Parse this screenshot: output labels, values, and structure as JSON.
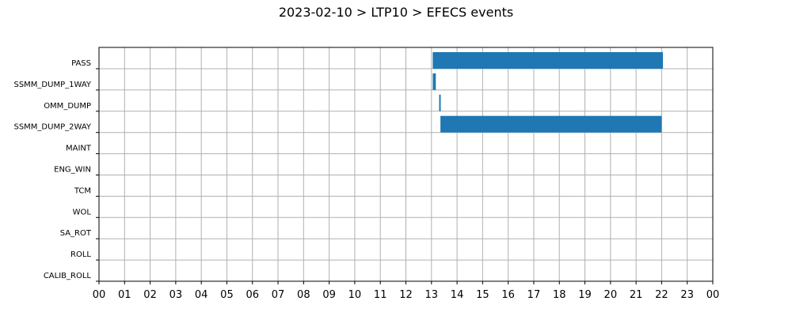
{
  "chart_data": {
    "type": "bar",
    "orientation": "horizontal",
    "title": "2023-02-10 > LTP10 > EFECS events",
    "xlabel": "",
    "ylabel": "",
    "xlim": [
      0,
      24
    ],
    "x_ticks": [
      "00",
      "01",
      "02",
      "03",
      "04",
      "05",
      "06",
      "07",
      "08",
      "09",
      "10",
      "11",
      "12",
      "13",
      "14",
      "15",
      "16",
      "17",
      "18",
      "19",
      "20",
      "21",
      "22",
      "23",
      "00"
    ],
    "categories": [
      "PASS",
      "SSMM_DUMP_1WAY",
      "OMM_DUMP",
      "SSMM_DUMP_2WAY",
      "MAINT",
      "ENG_WIN",
      "TCM",
      "WOL",
      "SA_ROT",
      "ROLL",
      "CALIB_ROLL"
    ],
    "series": [
      {
        "color": "#1f77b4",
        "intervals": [
          {
            "category": "PASS",
            "start": 13.05,
            "end": 22.05
          },
          {
            "category": "SSMM_DUMP_1WAY",
            "start": 13.05,
            "end": 13.17
          },
          {
            "category": "OMM_DUMP",
            "start": 13.3,
            "end": 13.35
          },
          {
            "category": "SSMM_DUMP_2WAY",
            "start": 13.35,
            "end": 22.0
          }
        ]
      }
    ],
    "grid": true
  }
}
